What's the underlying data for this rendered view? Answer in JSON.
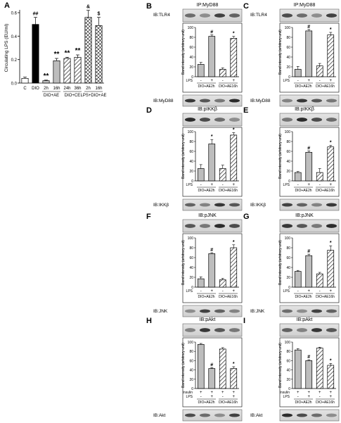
{
  "chart_data": [
    {
      "type": "bar",
      "letter": "A",
      "ylabel": "Circulating LPS (EU/ml)",
      "ylim": [
        0,
        0.6
      ],
      "yticks": [
        "0.0",
        "0.2",
        "0.4",
        "0.6"
      ],
      "categories": [
        "C",
        "DIO",
        "2h",
        "16h",
        "24h",
        "36h",
        "2h",
        "16h"
      ],
      "values": [
        0.04,
        0.5,
        0.02,
        0.19,
        0.21,
        0.22,
        0.56,
        0.49
      ],
      "errors": [
        0.01,
        0.06,
        0.005,
        0.02,
        0.01,
        0.02,
        0.06,
        0.07
      ],
      "fills": [
        "white",
        "black",
        "gray",
        "gray",
        "hatch",
        "hatch",
        "cross",
        "cross"
      ],
      "marks": [
        "",
        "##",
        "**",
        "**",
        "**",
        "**",
        "&",
        "$"
      ],
      "groups": [
        {
          "label": "DIO+AE",
          "from": 2,
          "to": 3
        },
        {
          "label": "DIO+CE",
          "from": 4,
          "to": 5
        },
        {
          "label": "LPS+DIO+AE",
          "from": 6,
          "to": 7
        }
      ]
    },
    {
      "type": "bar",
      "letter": "B",
      "ip": "IP:MyD88",
      "ib_top": "IB:TLR4",
      "ib_bottom": "IB:MyD88",
      "ylabel": "Band intensity (arbitrary unit)",
      "ylim": [
        0,
        100
      ],
      "yticks": [
        "0",
        "20",
        "40",
        "60",
        "80",
        "100"
      ],
      "row1_label": "LPS",
      "row1": [
        "-",
        "+",
        "-",
        "+"
      ],
      "groups": [
        "DIO+AE2h",
        "DIO+AE16h"
      ],
      "values": [
        25,
        82,
        15,
        78
      ],
      "errors": [
        4,
        3,
        3,
        4
      ],
      "marks": [
        "",
        "#",
        "",
        "*"
      ]
    },
    {
      "type": "bar",
      "letter": "C",
      "ip": "IP:MyD88",
      "ib_top": "IB:TLR4",
      "ib_bottom": "IB:MyD88",
      "ylabel": "Band intensity (arbitrary unit)",
      "ylim": [
        0,
        100
      ],
      "yticks": [
        "0",
        "20",
        "40",
        "60",
        "80",
        "100"
      ],
      "row1_label": "LPS",
      "row1": [
        "-",
        "+",
        "-",
        "+"
      ],
      "groups": [
        "DIO+AE2h",
        "DIO+AE16h"
      ],
      "values": [
        15,
        93,
        22,
        85
      ],
      "errors": [
        6,
        3,
        5,
        5
      ],
      "marks": [
        "",
        "#",
        "",
        "*"
      ]
    },
    {
      "type": "bar",
      "letter": "D",
      "ip": "IB:pIKKβ",
      "ib_bottom": "IB:IKKβ",
      "ylabel": "Band intensity (arbitrary unit)",
      "ylim": [
        0,
        100
      ],
      "yticks": [
        "0",
        "20",
        "40",
        "60",
        "80",
        "100"
      ],
      "row1_label": "LPS",
      "row1": [
        "-",
        "+",
        "-",
        "+"
      ],
      "groups": [
        "DIO+AE2h",
        "DIO+AE16h"
      ],
      "values": [
        25,
        75,
        25,
        93
      ],
      "errors": [
        8,
        9,
        7,
        5
      ],
      "marks": [
        "",
        "*",
        "",
        "*"
      ]
    },
    {
      "type": "bar",
      "letter": "E",
      "ip": "IB:pIKKβ",
      "ib_bottom": "IB:IKKβ",
      "ylabel": "Band intensity (arbitrary unit)",
      "ylim": [
        0,
        100
      ],
      "yticks": [
        "0",
        "20",
        "40",
        "60",
        "80",
        "100"
      ],
      "row1_label": "LPS",
      "row1": [
        "-",
        "+",
        "-",
        "+"
      ],
      "groups": [
        "DIO+AE2h",
        "DIO+AE16h"
      ],
      "values": [
        17,
        58,
        17,
        69
      ],
      "errors": [
        2,
        3,
        8,
        3
      ],
      "marks": [
        "",
        "#",
        "",
        "*"
      ]
    },
    {
      "type": "bar",
      "letter": "F",
      "ip": "IB:pJNK",
      "ib_bottom": "IB:JNK",
      "ylabel": "Band intensity (arbitrary unit)",
      "ylim": [
        0,
        100
      ],
      "yticks": [
        "0",
        "20",
        "40",
        "60",
        "80",
        "100"
      ],
      "row1_label": "LPS",
      "row1": [
        "-",
        "+",
        "-",
        "+"
      ],
      "groups": [
        "DIO+AE2h",
        "DIO+AE16h"
      ],
      "values": [
        17,
        68,
        15,
        80
      ],
      "errors": [
        4,
        2,
        3,
        6
      ],
      "marks": [
        "",
        "#",
        "",
        "*"
      ]
    },
    {
      "type": "bar",
      "letter": "G",
      "ip": "IB:pJNK",
      "ib_bottom": "IB:JNK",
      "ylabel": "Band intensity (arbitrary unit)",
      "ylim": [
        0,
        100
      ],
      "yticks": [
        "0",
        "20",
        "40",
        "60",
        "80",
        "100"
      ],
      "row1_label": "LPS",
      "row1": [
        "-",
        "+",
        "-",
        "+"
      ],
      "groups": [
        "DIO+AE2h",
        "DIO+AE16h"
      ],
      "values": [
        32,
        64,
        27,
        75
      ],
      "errors": [
        2,
        3,
        3,
        9
      ],
      "marks": [
        "",
        "#",
        "",
        "*"
      ]
    },
    {
      "type": "bar",
      "letter": "H",
      "ip": "IB:pAkt",
      "ib_bottom": "IB:Akt",
      "ylabel": "Band intensity (arbitrary unit)",
      "ylim": [
        0,
        100
      ],
      "yticks": [
        "0",
        "20",
        "40",
        "60",
        "80",
        "100"
      ],
      "row0_label": "Insulin",
      "row0": [
        "+",
        "+",
        "+",
        "+"
      ],
      "row1_label": "LPS",
      "row1": [
        "-",
        "+",
        "-",
        "+"
      ],
      "groups": [
        "DIO+AE2h",
        "DIO+AE16h"
      ],
      "values": [
        95,
        43,
        85,
        43
      ],
      "errors": [
        2,
        2,
        3,
        4
      ],
      "marks": [
        "",
        "#",
        "",
        "*"
      ]
    },
    {
      "type": "bar",
      "letter": "I",
      "ip": "IB:pAkt",
      "ib_bottom": "IB:Akt",
      "ylabel": "Band intensity (arbitrary unit)",
      "ylim": [
        0,
        100
      ],
      "yticks": [
        "0",
        "20",
        "40",
        "60",
        "80",
        "100"
      ],
      "row0_label": "Insulin",
      "row0": [
        "+",
        "+",
        "+",
        "+"
      ],
      "row1_label": "LPS",
      "row1": [
        "-",
        "+",
        "-",
        "+"
      ],
      "groups": [
        "DIO+AE2h",
        "DIO+AE16h"
      ],
      "values": [
        83,
        60,
        87,
        50
      ],
      "errors": [
        3,
        2,
        2,
        4
      ],
      "marks": [
        "",
        "#",
        "",
        "*"
      ]
    }
  ]
}
